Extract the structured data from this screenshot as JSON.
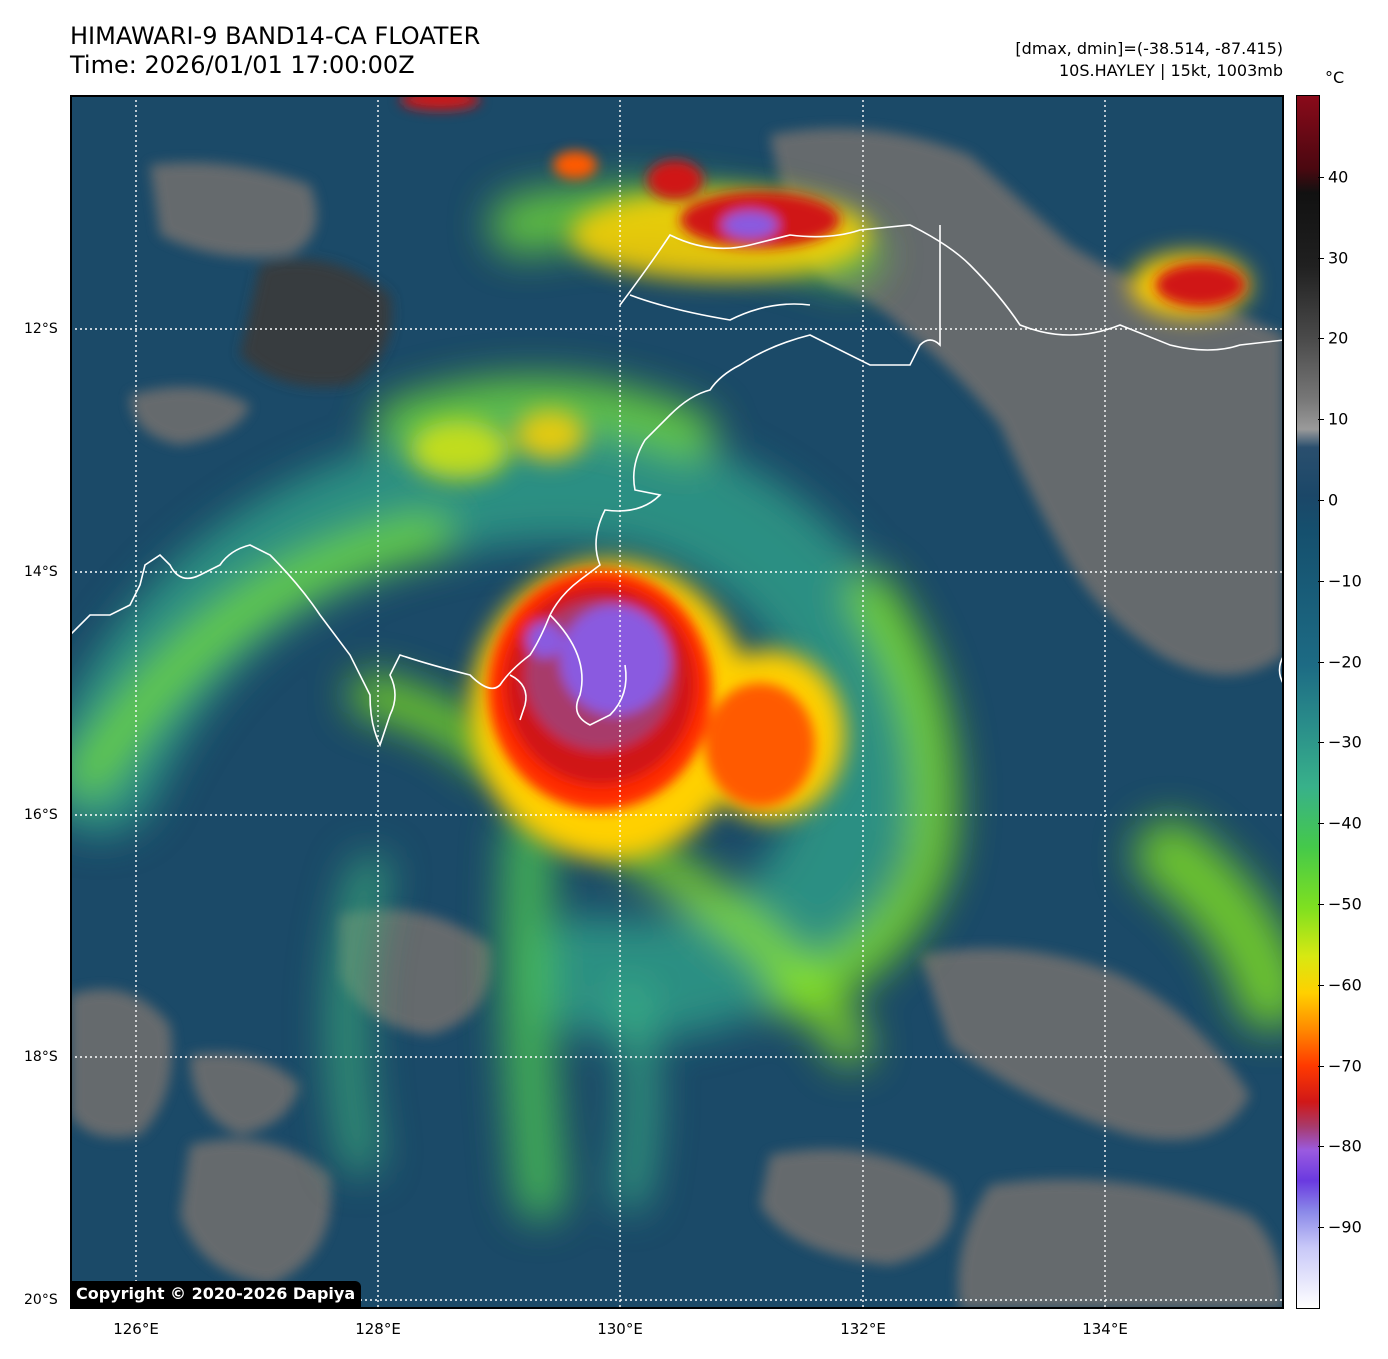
{
  "header": {
    "title_line1": "HIMAWARI-9 BAND14-CA FLOATER",
    "title_line2": "Time: 2026/01/01 17:00:00Z",
    "stats_line": "[dmax, dmin]=(-38.514, -87.415)",
    "storm_line": "10S.HAYLEY | 15kt, 1003mb"
  },
  "colorbar": {
    "unit": "°C",
    "ticks": [
      "40",
      "30",
      "20",
      "10",
      "0",
      "−10",
      "−20",
      "−30",
      "−40",
      "−50",
      "−60",
      "−70",
      "−80",
      "−90"
    ],
    "range": [
      -100,
      50
    ],
    "colors": {
      "warm": "#8a0a1a",
      "land": "#777777",
      "ocean": "#1b4768",
      "cloud_mid": "#45c94a",
      "cloud_high": "#ffd000",
      "cloud_cold": "#d01818",
      "cloud_coldest": "#6a3ae0"
    }
  },
  "axes": {
    "lat_labels": [
      "12°S",
      "14°S",
      "16°S",
      "18°S",
      "20°S"
    ],
    "lon_labels": [
      "126°E",
      "128°E",
      "130°E",
      "132°E",
      "134°E"
    ],
    "grid": "dotted white"
  },
  "map": {
    "extent": {
      "lon_min": 125.45,
      "lon_max": 135.45,
      "lat_min": -20.0,
      "lat_max": -10.05
    },
    "storm_center": {
      "lon": 130.2,
      "lat": -14.9
    }
  },
  "footer": {
    "copyright": "Copyright © 2020-2026 Dapiya"
  }
}
